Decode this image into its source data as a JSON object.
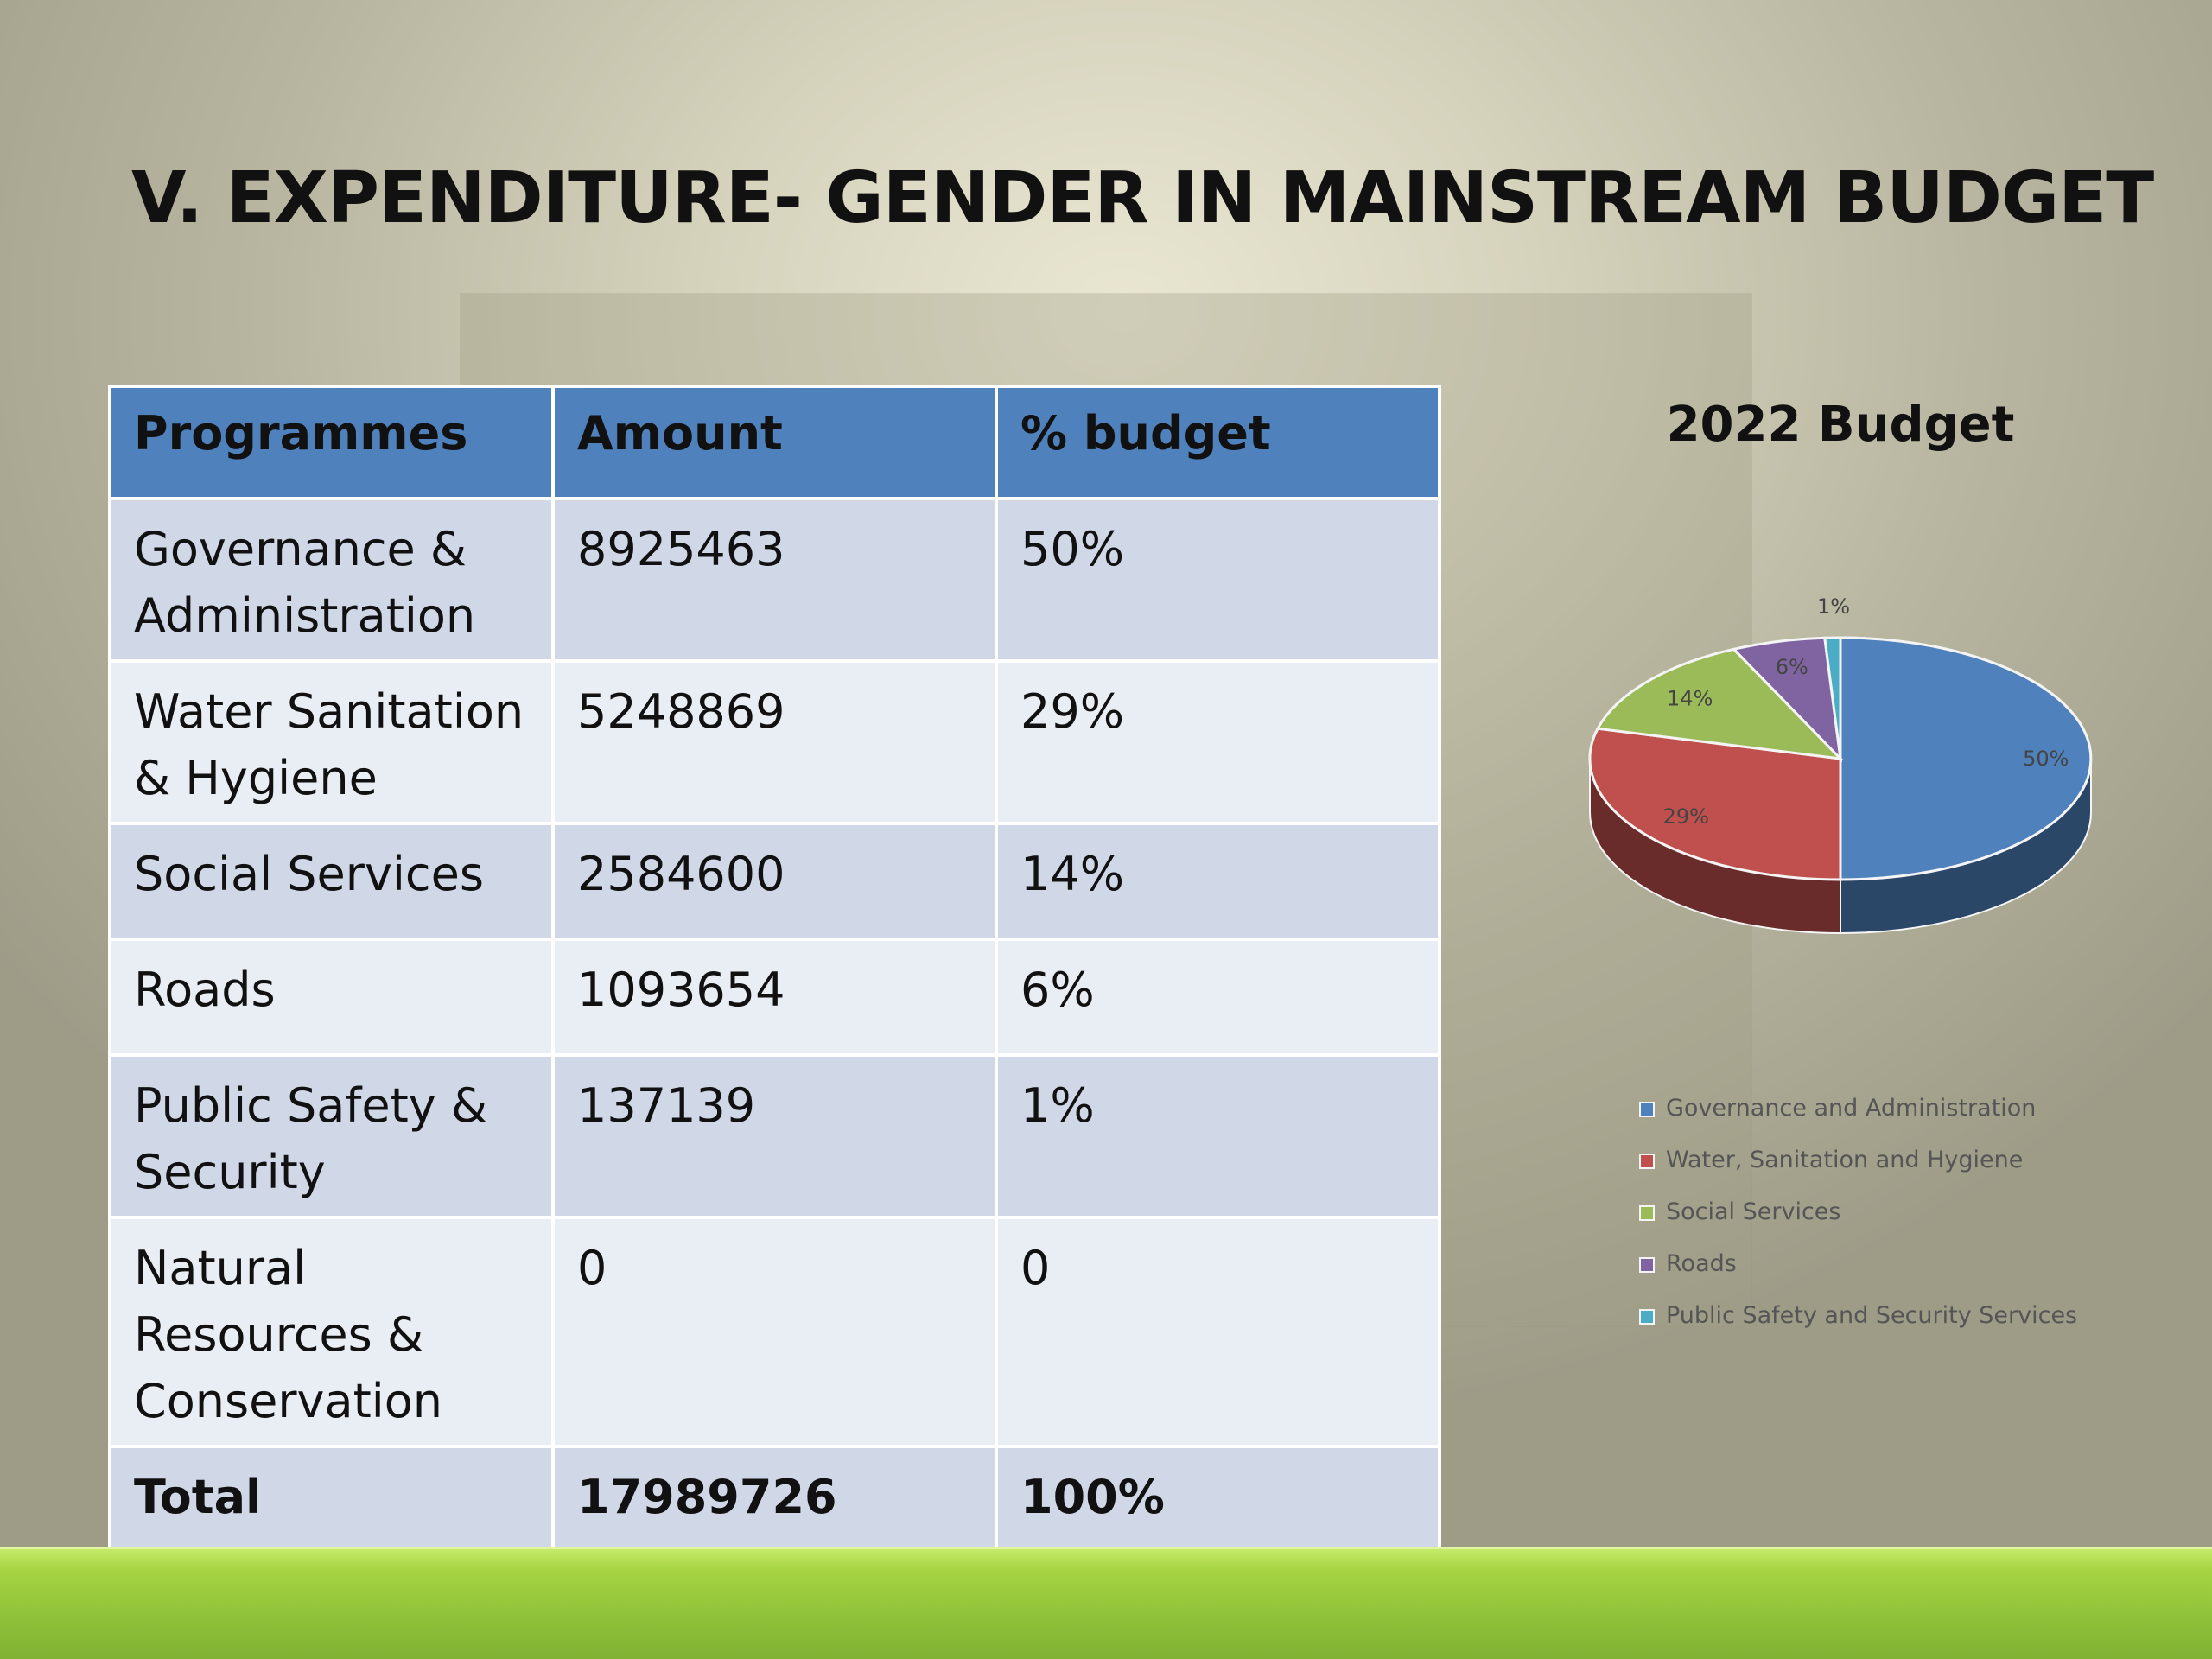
{
  "slide": {
    "title": "V. EXPENDITURE- GENDER IN MAINSTREAM BUDGET"
  },
  "table": {
    "headers": [
      "Programmes",
      "Amount",
      "% budget"
    ],
    "rows": [
      {
        "programme": "Governance & Administration",
        "amount": "8925463",
        "percent": "50%"
      },
      {
        "programme": "Water Sanitation & Hygiene",
        "amount": "5248869",
        "percent": "29%"
      },
      {
        "programme": "Social Services",
        "amount": "2584600",
        "percent": "14%"
      },
      {
        "programme": "Roads",
        "amount": "1093654",
        "percent": "6%"
      },
      {
        "programme": "Public Safety & Security",
        "amount": "137139",
        "percent": "1%"
      },
      {
        "programme": "Natural Resources & Conservation",
        "amount": "0",
        "percent": "0"
      }
    ],
    "total": {
      "label": "Total",
      "amount": "17989726",
      "percent": "100%"
    }
  },
  "chart_data": {
    "type": "pie",
    "title": "2022 Budget",
    "categories": [
      "Governance and Administration",
      "Water, Sanitation and Hygiene",
      "Social Services",
      "Roads",
      "Public Safety and Security Services"
    ],
    "values": [
      50,
      29,
      14,
      6,
      1
    ],
    "data_labels": [
      "50%",
      "29%",
      "14%",
      "6%",
      "1%"
    ],
    "colors": [
      "#4f81bd",
      "#c0504d",
      "#9bbb59",
      "#8064a2",
      "#4bacc6"
    ],
    "legend_position": "bottom"
  }
}
